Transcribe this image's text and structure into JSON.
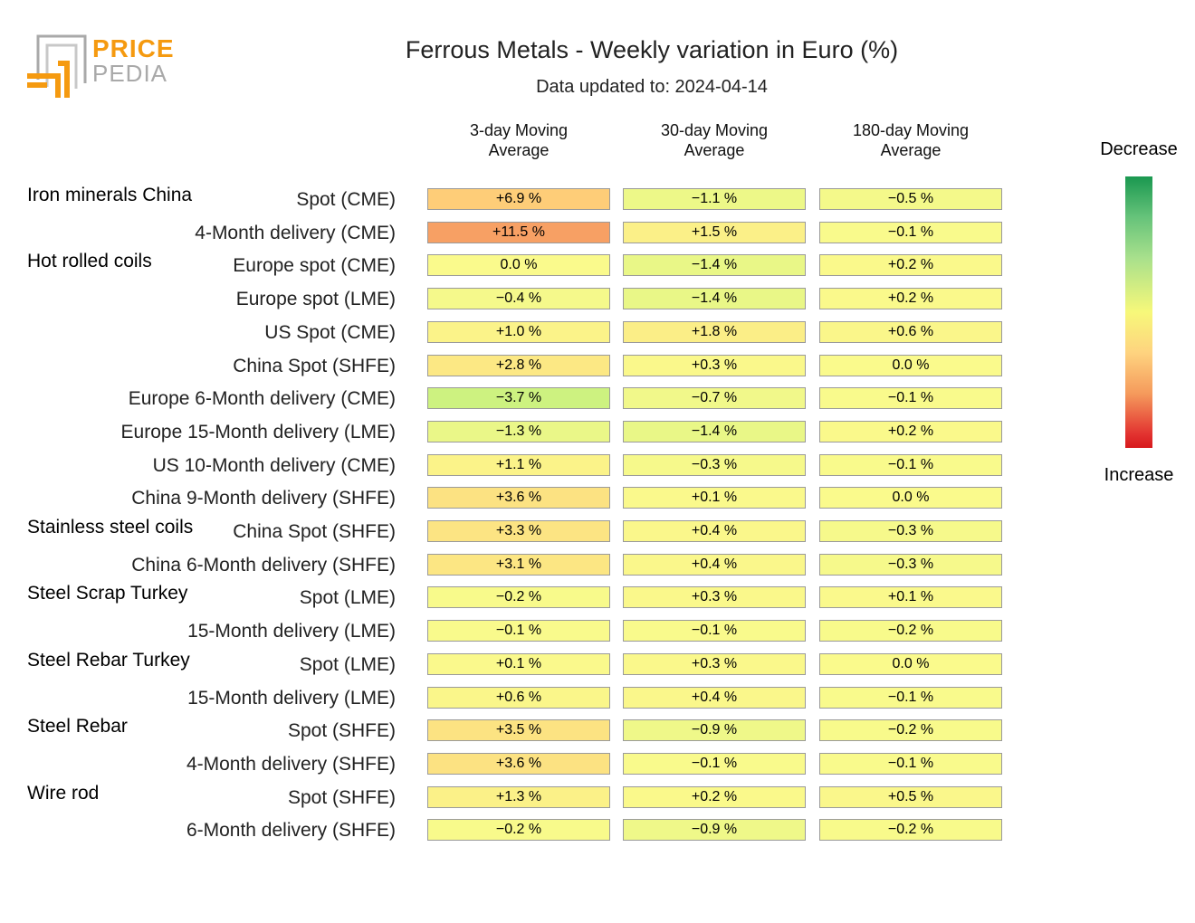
{
  "logo": {
    "text_top": "PRICE",
    "text_bottom": "PEDIA",
    "orange": "#f59a10",
    "gray": "#a9a9a9"
  },
  "title": "Ferrous Metals - Weekly variation in Euro (%)",
  "subtitle": "Data updated to: 2024-04-14",
  "legend": {
    "top_label": "Decrease",
    "bottom_label": "Increase"
  },
  "chart_data": {
    "type": "heatmap",
    "title": "Ferrous Metals - Weekly variation in Euro (%)",
    "columns": [
      "3-day Moving\nAverage",
      "30-day Moving\nAverage",
      "180-day Moving\nAverage"
    ],
    "unit": "%",
    "groups": [
      {
        "name": "Iron minerals China",
        "rows": [
          {
            "label": "Spot (CME)",
            "values": [
              6.9,
              -1.1,
              -0.5
            ]
          },
          {
            "label": "4-Month delivery (CME)",
            "values": [
              11.5,
              1.5,
              -0.1
            ]
          }
        ]
      },
      {
        "name": "Hot rolled coils",
        "rows": [
          {
            "label": "Europe spot (CME)",
            "values": [
              0.0,
              -1.4,
              0.2
            ]
          },
          {
            "label": "Europe spot (LME)",
            "values": [
              -0.4,
              -1.4,
              0.2
            ]
          },
          {
            "label": "US Spot (CME)",
            "values": [
              1.0,
              1.8,
              0.6
            ]
          },
          {
            "label": "China Spot (SHFE)",
            "values": [
              2.8,
              0.3,
              0.0
            ]
          },
          {
            "label": "Europe 6-Month delivery (CME)",
            "values": [
              -3.7,
              -0.7,
              -0.1
            ]
          },
          {
            "label": "Europe 15-Month delivery (LME)",
            "values": [
              -1.3,
              -1.4,
              0.2
            ]
          },
          {
            "label": "US 10-Month delivery (CME)",
            "values": [
              1.1,
              -0.3,
              -0.1
            ]
          },
          {
            "label": "China 9-Month delivery (SHFE)",
            "values": [
              3.6,
              0.1,
              0.0
            ]
          }
        ]
      },
      {
        "name": "Stainless steel coils",
        "rows": [
          {
            "label": "China Spot (SHFE)",
            "values": [
              3.3,
              0.4,
              -0.3
            ]
          },
          {
            "label": "China 6-Month delivery (SHFE)",
            "values": [
              3.1,
              0.4,
              -0.3
            ]
          }
        ]
      },
      {
        "name": "Steel Scrap Turkey",
        "rows": [
          {
            "label": "Spot (LME)",
            "values": [
              -0.2,
              0.3,
              0.1
            ]
          },
          {
            "label": "15-Month delivery (LME)",
            "values": [
              -0.1,
              -0.1,
              -0.2
            ]
          }
        ]
      },
      {
        "name": "Steel Rebar Turkey",
        "rows": [
          {
            "label": "Spot (LME)",
            "values": [
              0.1,
              0.3,
              0.0
            ]
          },
          {
            "label": "15-Month delivery (LME)",
            "values": [
              0.6,
              0.4,
              -0.1
            ]
          }
        ]
      },
      {
        "name": "Steel Rebar",
        "rows": [
          {
            "label": "Spot (SHFE)",
            "values": [
              3.5,
              -0.9,
              -0.2
            ]
          },
          {
            "label": "4-Month delivery (SHFE)",
            "values": [
              3.6,
              -0.1,
              -0.1
            ]
          }
        ]
      },
      {
        "name": "Wire rod",
        "rows": [
          {
            "label": "Spot (SHFE)",
            "values": [
              1.3,
              0.2,
              0.5
            ]
          },
          {
            "label": "6-Month delivery (SHFE)",
            "values": [
              -0.2,
              -0.9,
              -0.2
            ]
          }
        ]
      }
    ]
  }
}
